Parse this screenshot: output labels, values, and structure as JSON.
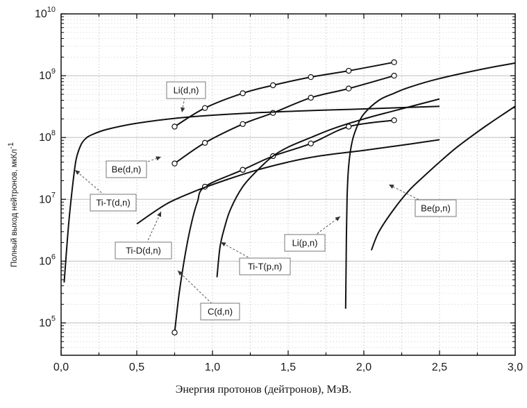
{
  "chart_data": {
    "type": "line",
    "scale": {
      "x": "linear",
      "y": "log10"
    },
    "xlim": [
      0.0,
      3.0
    ],
    "ylim": [
      30000,
      10000000000
    ],
    "xticks": [
      "0,0",
      "0,5",
      "1,0",
      "1,5",
      "2,0",
      "2,5",
      "3,0"
    ],
    "yticks": [
      {
        "base": "10",
        "exp": "5"
      },
      {
        "base": "10",
        "exp": "6"
      },
      {
        "base": "10",
        "exp": "7"
      },
      {
        "base": "10",
        "exp": "8"
      },
      {
        "base": "10",
        "exp": "9"
      },
      {
        "base": "10",
        "exp": "10"
      }
    ],
    "ylabel": "Полный выход нейтронов, мкКл",
    "ylabel_sup": "-1",
    "xlabel": "Энергия протонов (дейтронов), МэВ.",
    "grid": true,
    "series": [
      {
        "name": "Li(d,n)",
        "markers": true,
        "x": [
          0.75,
          0.95,
          1.2,
          1.4,
          1.65,
          1.9,
          2.2
        ],
        "y": [
          150000000,
          300000000,
          520000000,
          700000000,
          950000000,
          1200000000,
          1650000000
        ]
      },
      {
        "name": "Be(d,n)",
        "markers": true,
        "x": [
          0.75,
          0.95,
          1.2,
          1.4,
          1.65,
          1.9,
          2.2
        ],
        "y": [
          38000000,
          82000000,
          165000000,
          250000000,
          440000000,
          620000000,
          1000000000
        ]
      },
      {
        "name": "C(d,n)",
        "markers": true,
        "x": [
          0.75,
          0.78,
          0.82,
          0.86,
          0.9,
          0.95,
          1.2,
          1.4,
          1.65,
          1.9,
          2.2
        ],
        "y": [
          70000,
          300000,
          1300000,
          4000000,
          9000000,
          16000000,
          30000000,
          50000000,
          80000000,
          150000000,
          190000000
        ]
      },
      {
        "name": "Ti-T(d,n)",
        "markers": false,
        "x": [
          0.02,
          0.05,
          0.08,
          0.1,
          0.13,
          0.16,
          0.2,
          0.3,
          0.5,
          0.8,
          1.2,
          1.6,
          2.0,
          2.5
        ],
        "y": [
          450000,
          4000000,
          20000000,
          45000000,
          75000000,
          95000000,
          110000000,
          135000000,
          170000000,
          210000000,
          245000000,
          270000000,
          290000000,
          320000000
        ]
      },
      {
        "name": "Ti-D(d,n)",
        "markers": false,
        "x": [
          0.5,
          0.7,
          0.9,
          1.1,
          1.3,
          1.5,
          1.7,
          2.0,
          2.3,
          2.5
        ],
        "y": [
          4000000,
          8500000,
          14000000,
          21000000,
          30000000,
          40000000,
          50000000,
          62000000,
          78000000,
          92000000
        ]
      },
      {
        "name": "Ti-T(p,n)",
        "markers": false,
        "x": [
          1.03,
          1.05,
          1.08,
          1.12,
          1.2,
          1.3,
          1.4,
          1.5,
          1.65,
          1.8,
          2.0,
          2.2,
          2.5
        ],
        "y": [
          550000,
          1700000,
          3500000,
          7000000,
          16000000,
          30000000,
          50000000,
          70000000,
          100000000,
          140000000,
          200000000,
          270000000,
          420000000
        ]
      },
      {
        "name": "Li(p,n)",
        "markers": false,
        "x": [
          1.88,
          1.885,
          1.89,
          1.9,
          1.92,
          1.95,
          2.0,
          2.1,
          2.2,
          2.3,
          2.5,
          2.8,
          3.0
        ],
        "y": [
          170000,
          2500000,
          12000000,
          35000000,
          80000000,
          140000000,
          240000000,
          400000000,
          520000000,
          650000000,
          900000000,
          1300000000,
          1600000000
        ]
      },
      {
        "name": "Be(p,n)",
        "markers": false,
        "x": [
          2.05,
          2.1,
          2.2,
          2.3,
          2.4,
          2.5,
          2.6,
          2.7,
          2.8,
          2.9,
          3.0
        ],
        "y": [
          1500000,
          3000000,
          7000000,
          14000000,
          24000000,
          40000000,
          65000000,
          100000000,
          150000000,
          220000000,
          320000000
        ]
      }
    ],
    "annotations": [
      {
        "text": "Li(d,n)",
        "series": 0
      },
      {
        "text": "Be(d,n)",
        "series": 1
      },
      {
        "text": "C(d,n)",
        "series": 2
      },
      {
        "text": "Ti-T(d,n)",
        "series": 3
      },
      {
        "text": "Ti-D(d,n)",
        "series": 4
      },
      {
        "text": "Ti-T(p,n)",
        "series": 5
      },
      {
        "text": "Li(p,n)",
        "series": 6
      },
      {
        "text": "Be(p,n)",
        "series": 7
      }
    ]
  }
}
